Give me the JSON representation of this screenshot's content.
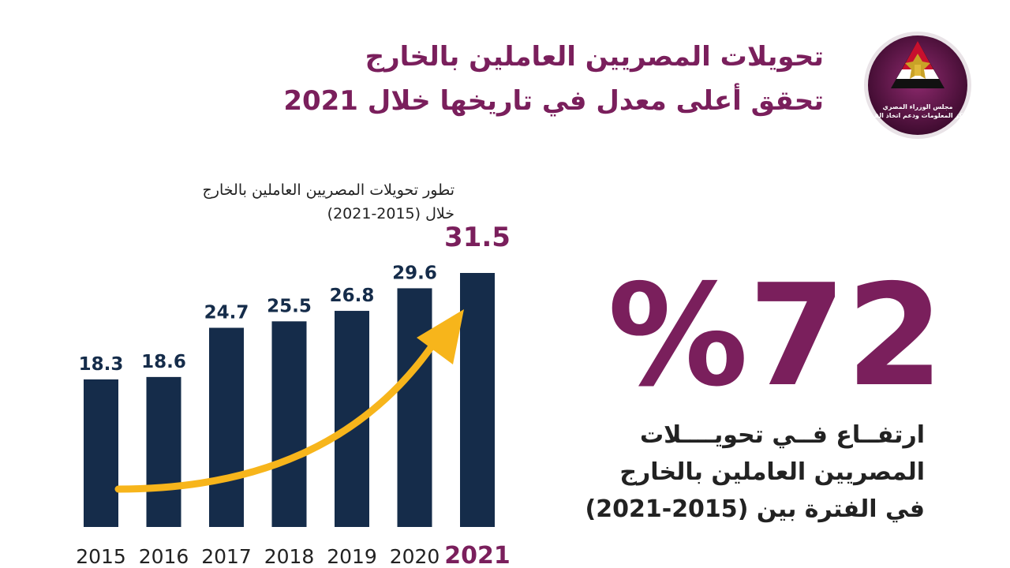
{
  "header": {
    "title_line1": "تحويلات المصريين العاملين بالخارج",
    "title_line2": "تحقق أعلى معدل في تاريخها خلال 2021"
  },
  "logo": {
    "line1": "مجلس الوزراء المصري",
    "line2": "مركز المعلومات ودعم اتخاذ القرار",
    "icon": "eagle-emblem-icon"
  },
  "stat": {
    "value": "%72",
    "desc_line1": "ارتفــاع فــي تحويــــلات",
    "desc_line2": "المصريين العاملين بالخارج",
    "desc_line3": "في الفترة بين (2015-2021)"
  },
  "colors": {
    "brand": "#7a1f5c",
    "bar": "#152c4a",
    "arrow": "#f7b51b",
    "text": "#222222"
  },
  "chart_data": {
    "type": "bar",
    "title": "تطور تحويلات المصريين العاملين بالخارج",
    "subtitle": "خلال (2015-2021)",
    "categories": [
      "2015",
      "2016",
      "2017",
      "2018",
      "2019",
      "2020",
      "2021"
    ],
    "values": [
      18.3,
      18.6,
      24.7,
      25.5,
      26.8,
      29.6,
      31.5
    ],
    "value_labels": [
      "18.3",
      "18.6",
      "24.7",
      "25.5",
      "26.8",
      "29.6",
      "31.5"
    ],
    "highlight": "2021",
    "ylim": [
      0,
      31.5
    ],
    "grid": false,
    "legend": "none"
  }
}
